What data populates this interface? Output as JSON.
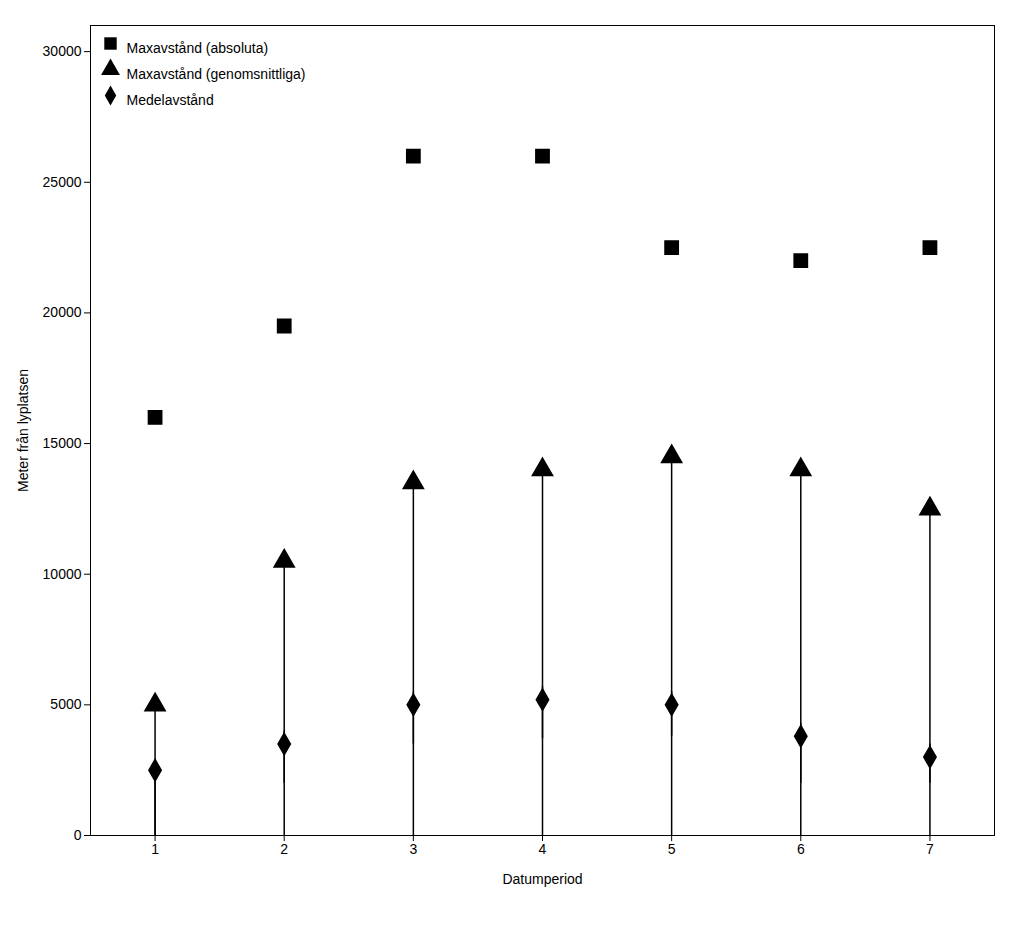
{
  "chart_data": {
    "type": "scatter",
    "xlabel": "Datumperiod",
    "ylabel": "Meter från lyplatsen",
    "x": [
      1,
      2,
      3,
      4,
      5,
      6,
      7
    ],
    "series": [
      {
        "name": "Maxavstånd (absoluta)",
        "marker": "square",
        "values": [
          16000,
          19500,
          26000,
          26000,
          22500,
          22000,
          22500
        ]
      },
      {
        "name": "Maxavstånd (genomsnittliga)",
        "marker": "triangle",
        "values": [
          5000,
          10500,
          13500,
          14000,
          14500,
          14000,
          12500
        ],
        "err_low": [
          5000,
          10500,
          13500,
          14000,
          14500,
          14000,
          12500
        ],
        "err_high": [
          0,
          0,
          0,
          0,
          0,
          0,
          0
        ]
      },
      {
        "name": "Medelavstånd",
        "marker": "diamond",
        "values": [
          2500,
          3500,
          5000,
          5200,
          5000,
          3800,
          3000
        ],
        "err_low": [
          2500,
          1500,
          1500,
          1500,
          1200,
          1800,
          1000
        ],
        "err_high": [
          0,
          500,
          500,
          500,
          500,
          500,
          500
        ]
      }
    ],
    "xlim": [
      0.5,
      7.5
    ],
    "xticks": [
      1,
      2,
      3,
      4,
      5,
      6,
      7
    ],
    "ylim": [
      0,
      31000
    ],
    "yticks": [
      0,
      5000,
      10000,
      15000,
      20000,
      25000,
      30000
    ],
    "legend": "upper left",
    "grid": false
  }
}
